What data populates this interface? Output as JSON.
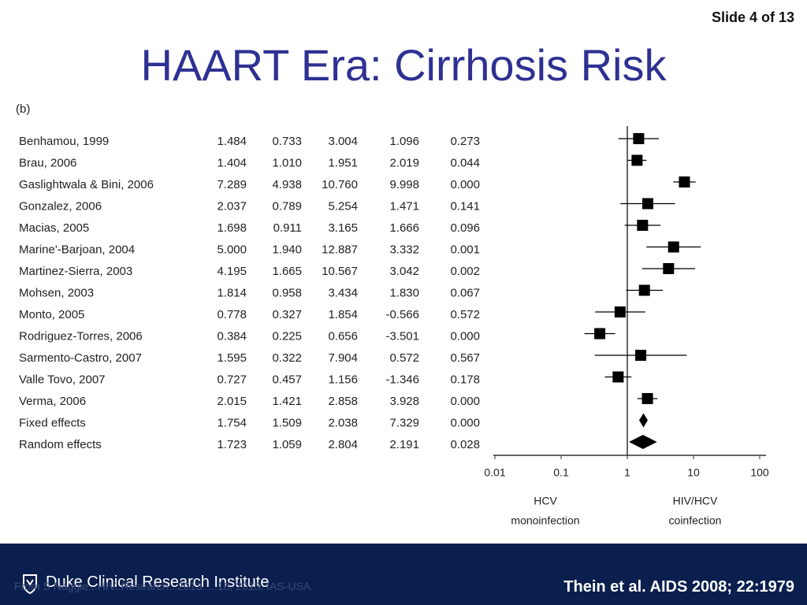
{
  "slide": {
    "counter": "Slide 4 of 13",
    "title": "HAART Era: Cirrhosis Risk",
    "panel_label": "(b)"
  },
  "chart_data": {
    "type": "forest",
    "columns": [
      "Study",
      "Odds ratio",
      "Lower limit",
      "Upper limit",
      "Z-Value",
      "p-Value"
    ],
    "rows": [
      {
        "study": "Benhamou, 1999",
        "or": "1.484",
        "lower": "0.733",
        "upper": "3.004",
        "z": "1.096",
        "p": "0.273",
        "or_v": 1.484,
        "lo_v": 0.733,
        "hi_v": 3.004,
        "marker": "square"
      },
      {
        "study": "Brau, 2006",
        "or": "1.404",
        "lower": "1.010",
        "upper": "1.951",
        "z": "2.019",
        "p": "0.044",
        "or_v": 1.404,
        "lo_v": 1.01,
        "hi_v": 1.951,
        "marker": "square"
      },
      {
        "study": "Gaslightwala & Bini, 2006",
        "or": "7.289",
        "lower": "4.938",
        "upper": "10.760",
        "z": "9.998",
        "p": "0.000",
        "or_v": 7.289,
        "lo_v": 4.938,
        "hi_v": 10.76,
        "marker": "square"
      },
      {
        "study": "Gonzalez, 2006",
        "or": "2.037",
        "lower": "0.789",
        "upper": "5.254",
        "z": "1.471",
        "p": "0.141",
        "or_v": 2.037,
        "lo_v": 0.789,
        "hi_v": 5.254,
        "marker": "square"
      },
      {
        "study": "Macias, 2005",
        "or": "1.698",
        "lower": "0.911",
        "upper": "3.165",
        "z": "1.666",
        "p": "0.096",
        "or_v": 1.698,
        "lo_v": 0.911,
        "hi_v": 3.165,
        "marker": "square"
      },
      {
        "study": "Marine'-Barjoan, 2004",
        "or": "5.000",
        "lower": "1.940",
        "upper": "12.887",
        "z": "3.332",
        "p": "0.001",
        "or_v": 5.0,
        "lo_v": 1.94,
        "hi_v": 12.887,
        "marker": "square"
      },
      {
        "study": "Martinez-Sierra, 2003",
        "or": "4.195",
        "lower": "1.665",
        "upper": "10.567",
        "z": "3.042",
        "p": "0.002",
        "or_v": 4.195,
        "lo_v": 1.665,
        "hi_v": 10.567,
        "marker": "square"
      },
      {
        "study": "Mohsen, 2003",
        "or": "1.814",
        "lower": "0.958",
        "upper": "3.434",
        "z": "1.830",
        "p": "0.067",
        "or_v": 1.814,
        "lo_v": 0.958,
        "hi_v": 3.434,
        "marker": "square"
      },
      {
        "study": "Monto, 2005",
        "or": "0.778",
        "lower": "0.327",
        "upper": "1.854",
        "z": "-0.566",
        "p": "0.572",
        "or_v": 0.778,
        "lo_v": 0.327,
        "hi_v": 1.854,
        "marker": "square"
      },
      {
        "study": "Rodriguez-Torres, 2006",
        "or": "0.384",
        "lower": "0.225",
        "upper": "0.656",
        "z": "-3.501",
        "p": "0.000",
        "or_v": 0.384,
        "lo_v": 0.225,
        "hi_v": 0.656,
        "marker": "square"
      },
      {
        "study": "Sarmento-Castro, 2007",
        "or": "1.595",
        "lower": "0.322",
        "upper": "7.904",
        "z": "0.572",
        "p": "0.567",
        "or_v": 1.595,
        "lo_v": 0.322,
        "hi_v": 7.904,
        "marker": "square"
      },
      {
        "study": "Valle Tovo, 2007",
        "or": "0.727",
        "lower": "0.457",
        "upper": "1.156",
        "z": "-1.346",
        "p": "0.178",
        "or_v": 0.727,
        "lo_v": 0.457,
        "hi_v": 1.156,
        "marker": "square"
      },
      {
        "study": "Verma, 2006",
        "or": "2.015",
        "lower": "1.421",
        "upper": "2.858",
        "z": "3.928",
        "p": "0.000",
        "or_v": 2.015,
        "lo_v": 1.421,
        "hi_v": 2.858,
        "marker": "square"
      },
      {
        "study": "Fixed effects",
        "or": "1.754",
        "lower": "1.509",
        "upper": "2.038",
        "z": "7.329",
        "p": "0.000",
        "or_v": 1.754,
        "lo_v": 1.509,
        "hi_v": 2.038,
        "marker": "diamond"
      },
      {
        "study": "Random effects",
        "or": "1.723",
        "lower": "1.059",
        "upper": "2.804",
        "z": "2.191",
        "p": "0.028",
        "or_v": 1.723,
        "lo_v": 1.059,
        "hi_v": 2.804,
        "marker": "diamond"
      }
    ],
    "x_scale": "log",
    "x_ticks": [
      "0.01",
      "0.1",
      "1",
      "10",
      "100"
    ],
    "x_tick_values": [
      0.01,
      0.1,
      1,
      10,
      100
    ],
    "xlim": [
      0.01,
      100
    ],
    "reference_line": 1,
    "left_label": [
      "HCV",
      "monoinfection"
    ],
    "right_label": [
      "HIV/HCV",
      "coinfection"
    ]
  },
  "footer": {
    "institute": "Duke Clinical Research Institute",
    "source_note": "From S Naggie...HIV..Research...2013: ...18, 2013, IAS-USA.",
    "citation": "Thein et al. AIDS 2008; 22:1979"
  },
  "colors": {
    "title": "#2e3192",
    "footer_bg": "#0a1f4e",
    "marker": "#000000"
  }
}
